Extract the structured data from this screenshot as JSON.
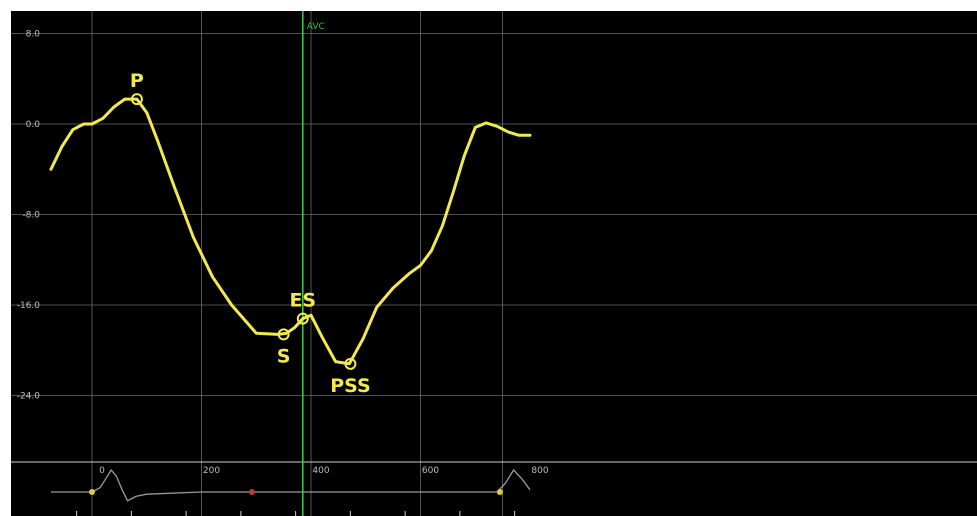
{
  "colors": {
    "background": "#000000",
    "frame": "#ffffff",
    "grid": "#6b6b6b",
    "curve": "#f2e94e",
    "avc": "#3fbf3f",
    "tick_text": "#bdbdbd",
    "ecg": "#9a9a9a"
  },
  "chart_data": [
    {
      "type": "line",
      "title": "",
      "xlabel": "",
      "ylabel": "",
      "xlim": [
        -75,
        805
      ],
      "ylim": [
        -32,
        10
      ],
      "grid": true,
      "y_ticks": [
        8.0,
        0.0,
        -8.0,
        -16.0,
        -24.0
      ],
      "y_tick_labels": [
        "8.0",
        "0.0",
        "-8.0",
        "-16.0",
        "-24.0"
      ],
      "vertical_gridlines_x": [
        0,
        200,
        400,
        600,
        750
      ],
      "series": [
        {
          "name": "",
          "color": "#f2e94e",
          "x": [
            -75,
            -55,
            -35,
            -15,
            0,
            20,
            40,
            60,
            82,
            100,
            120,
            150,
            185,
            220,
            255,
            300,
            340,
            355,
            370,
            385,
            400,
            420,
            445,
            470,
            495,
            520,
            550,
            580,
            600,
            620,
            640,
            660,
            680,
            700,
            720,
            740,
            760,
            780,
            800
          ],
          "y": [
            -4,
            -2,
            -0.5,
            0,
            0,
            0.5,
            1.5,
            2.2,
            2.2,
            1,
            -1.5,
            -5.5,
            -10,
            -13.5,
            -16,
            -18.5,
            -18.6,
            -18.5,
            -18,
            -17.2,
            -16.9,
            -18.8,
            -21,
            -21.2,
            -19,
            -16.2,
            -14.5,
            -13.2,
            -12.5,
            -11.2,
            -9,
            -6,
            -2.8,
            -0.3,
            0.1,
            -0.2,
            -0.7,
            -1,
            -1
          ]
        }
      ],
      "annotations": [
        {
          "label": "P",
          "x": 82,
          "y": 2.2,
          "label_pos": "above"
        },
        {
          "label": "S",
          "x": 350,
          "y": -18.6,
          "label_pos": "below"
        },
        {
          "label": "ES",
          "x": 385,
          "y": -17.2,
          "label_pos": "above"
        },
        {
          "label": "PSS",
          "x": 472,
          "y": -21.2,
          "label_pos": "below"
        }
      ],
      "vertical_marker": {
        "label": "AVC",
        "x": 385
      }
    },
    {
      "type": "line",
      "title": "",
      "xlabel": "",
      "ylabel": "",
      "xlim": [
        -75,
        805
      ],
      "x_ticks": [
        0,
        200,
        400,
        600,
        800
      ],
      "x_tick_labels": [
        "0",
        "200",
        "400",
        "600",
        "800"
      ],
      "series": [
        {
          "name": "",
          "color": "#9a9a9a",
          "x": [
            -75,
            -10,
            0,
            15,
            25,
            35,
            45,
            55,
            65,
            80,
            100,
            200,
            300,
            400,
            500,
            600,
            700,
            740,
            755,
            770,
            785,
            800
          ],
          "y": [
            0,
            0,
            0,
            0.2,
            0.6,
            1,
            0.7,
            0.1,
            -0.4,
            -0.2,
            -0.1,
            0,
            0,
            0,
            0,
            0,
            0,
            0,
            0.4,
            1,
            0.6,
            0.1
          ]
        }
      ],
      "markers": [
        {
          "x": 0,
          "color": "#d8cf3a"
        },
        {
          "x": 292,
          "color": "#c0392b"
        },
        {
          "x": 745,
          "color": "#d8cf3a"
        }
      ]
    }
  ]
}
